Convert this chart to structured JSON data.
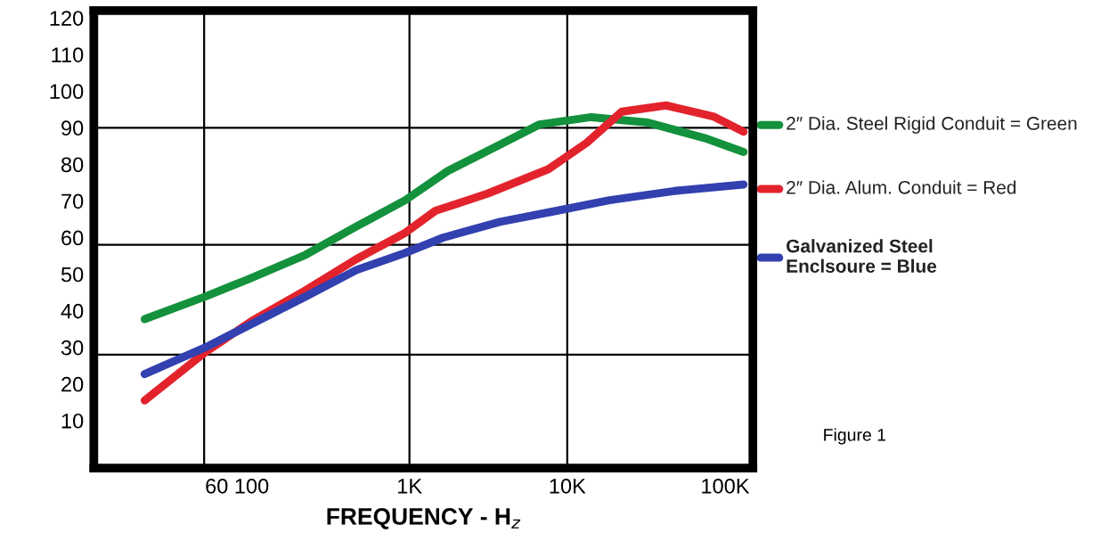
{
  "chart_data": {
    "type": "line",
    "xlabel": "FREQUENCY - H$_{z}$",
    "log": "x",
    "xlim": [
      10,
      150000
    ],
    "ylim": [
      -3,
      122
    ],
    "xticks": [
      60,
      100,
      {
        "value": 1000,
        "label": "1K"
      },
      {
        "value": 10000,
        "label": "10K"
      },
      {
        "value": 100000,
        "label": "100K"
      }
    ],
    "yticks": [
      10,
      20,
      30,
      40,
      50,
      60,
      70,
      80,
      90,
      100,
      110,
      120
    ],
    "grid": false,
    "legend": "right",
    "marker": "none",
    "line_style": "solid",
    "ref_lines": [
      {
        "axis": "x",
        "value": 50,
        "color": "#000000"
      },
      {
        "axis": "x",
        "value": 1000,
        "color": "#000000"
      },
      {
        "axis": "x",
        "value": 10000,
        "color": "#000000"
      },
      {
        "axis": "y",
        "value": 90,
        "color": "#000000"
      },
      {
        "axis": "y",
        "value": 58,
        "color": "#000000"
      },
      {
        "axis": "y",
        "value": 28,
        "color": "#000000"
      }
    ],
    "series": [
      {
        "name": "2″ Dia. Steel Rigid Conduit = Green",
        "color": "#13913c",
        "x": [
          21,
          51,
          95,
          220,
          460,
          940,
          1750,
          3750,
          6670,
          14200,
          32500,
          74000,
          131000
        ],
        "values": [
          37.7,
          43.9,
          48.6,
          55.3,
          63.0,
          70.2,
          78.2,
          85.4,
          90.9,
          92.9,
          91.4,
          87.2,
          83.4
        ]
      },
      {
        "name": "2″ Dia. Alum. Conduit = Red",
        "color": "#e3232c",
        "x": [
          21,
          51,
          100,
          220,
          460,
          940,
          1460,
          3120,
          7600,
          13300,
          22200,
          42200,
          84000,
          131000
        ],
        "values": [
          15.5,
          28.7,
          37.2,
          45.6,
          54.1,
          61.3,
          67.3,
          72.0,
          78.7,
          85.9,
          94.4,
          96.1,
          93.1,
          88.9
        ]
      },
      {
        "name": "Galvanized Steel\nEnclsoure = Blue",
        "color": "#3340b0",
        "x": [
          21,
          51,
          100,
          220,
          460,
          940,
          1640,
          3750,
          8550,
          18500,
          47400,
          131000
        ],
        "values": [
          22.7,
          30.0,
          36.4,
          43.9,
          51.1,
          55.8,
          60.0,
          64.3,
          67.3,
          70.2,
          72.7,
          74.5
        ]
      }
    ],
    "annotations": [
      "Figure 1"
    ]
  }
}
